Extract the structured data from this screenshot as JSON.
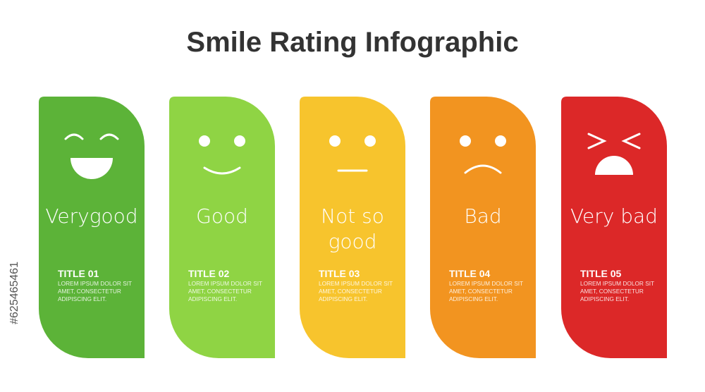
{
  "header": {
    "title": "Smile Rating Infographic"
  },
  "cards": [
    {
      "label": "Verygood",
      "title": "TITLE 01",
      "text": "LOREM IPSUM DOLOR SIT AMET, CONSECTETUR ADIPISCING ELIT."
    },
    {
      "label": "Good",
      "title": "TITLE 02",
      "text": "LOREM IPSUM DOLOR SIT AMET, CONSECTETUR ADIPISCING ELIT."
    },
    {
      "label": "Not so good",
      "title": "TITLE 03",
      "text": "LOREM IPSUM DOLOR SIT AMET, CONSECTETUR ADIPISCING ELIT."
    },
    {
      "label": "Bad",
      "title": "TITLE 04",
      "text": "LOREM IPSUM DOLOR SIT AMET, CONSECTETUR ADIPISCING ELIT."
    },
    {
      "label": "Very bad",
      "title": "TITLE 05",
      "text": "LOREM IPSUM DOLOR SIT AMET, CONSECTETUR ADIPISCING ELIT."
    }
  ],
  "stock_id": "#625465461"
}
